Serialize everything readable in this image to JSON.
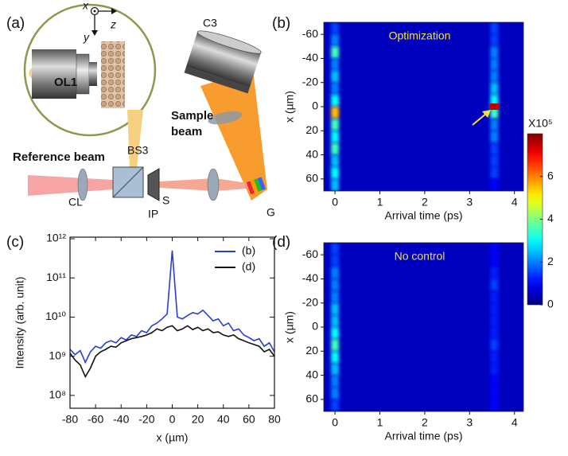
{
  "panel_labels": [
    "(a)",
    "(b)",
    "(c)",
    "(d)"
  ],
  "diagram": {
    "ol1": "OL1",
    "coord_x": "x",
    "coord_y": "y",
    "coord_z": "z",
    "c3": "C3",
    "sample_beam_1": "Sample",
    "sample_beam_2": "beam",
    "bs3": "BS3",
    "reference_beam": "Reference beam",
    "cl": "CL",
    "s": "S",
    "ip": "IP",
    "g": "G"
  },
  "chart_data": [
    {
      "type": "line",
      "log_y": true,
      "xlabel": "x (µm)",
      "ylabel": "Intensity (arb. unit)",
      "x": [
        -80,
        -76,
        -72,
        -68,
        -64,
        -60,
        -56,
        -52,
        -48,
        -44,
        -40,
        -36,
        -32,
        -28,
        -24,
        -20,
        -16,
        -12,
        -8,
        -4,
        0,
        4,
        8,
        12,
        16,
        20,
        24,
        28,
        32,
        36,
        40,
        44,
        48,
        52,
        56,
        60,
        64,
        68,
        72,
        76,
        80
      ],
      "series": [
        {
          "name": "(b)",
          "color": "#2a3ed6",
          "values": [
            1500000000.0,
            1100000000.0,
            1400000000.0,
            700000000.0,
            1300000000.0,
            1800000000.0,
            1600000000.0,
            2200000000.0,
            2500000000.0,
            2200000000.0,
            3000000000.0,
            2600000000.0,
            3500000000.0,
            3200000000.0,
            4500000000.0,
            4000000000.0,
            6000000000.0,
            7000000000.0,
            9000000000.0,
            12000000000.0,
            500000000000.0,
            10000000000.0,
            9000000000.0,
            11000000000.0,
            13000000000.0,
            12000000000.0,
            15000000000.0,
            11000000000.0,
            8000000000.0,
            9000000000.0,
            6000000000.0,
            7000000000.0,
            4500000000.0,
            5000000000.0,
            3500000000.0,
            3000000000.0,
            2500000000.0,
            2800000000.0,
            1800000000.0,
            2200000000.0,
            1300000000.0
          ]
        },
        {
          "name": "(d)",
          "color": "#111111",
          "values": [
            1200000000.0,
            800000000.0,
            600000000.0,
            300000000.0,
            500000000.0,
            1000000000.0,
            1300000000.0,
            1500000000.0,
            1800000000.0,
            1700000000.0,
            2200000000.0,
            2500000000.0,
            2800000000.0,
            3000000000.0,
            3200000000.0,
            3500000000.0,
            4000000000.0,
            5000000000.0,
            4500000000.0,
            5500000000.0,
            6000000000.0,
            4500000000.0,
            5000000000.0,
            6000000000.0,
            4800000000.0,
            5500000000.0,
            4500000000.0,
            5000000000.0,
            4000000000.0,
            4200000000.0,
            3500000000.0,
            3200000000.0,
            3500000000.0,
            2800000000.0,
            2500000000.0,
            2200000000.0,
            2000000000.0,
            1800000000.0,
            1300000000.0,
            1500000000.0,
            1000000000.0
          ]
        }
      ],
      "xlim": [
        -80,
        80
      ],
      "xticks": [
        -80,
        -60,
        -40,
        -20,
        0,
        20,
        40,
        60,
        80
      ],
      "ylim": [
        47000000.0,
        1100000000000.0
      ],
      "yticks": [
        {
          "value": 100000000.0,
          "label": "10⁸"
        },
        {
          "value": 1000000000.0,
          "label": "10⁹"
        },
        {
          "value": 10000000000.0,
          "label": "10¹⁰"
        },
        {
          "value": 100000000000.0,
          "label": "10¹¹"
        },
        {
          "value": 1000000000000.0,
          "label": "10¹²"
        }
      ],
      "legend": "upper right"
    },
    {
      "type": "heatmap",
      "colormap": "jet",
      "annotation": "Optimization",
      "xlabel": "Arrival time (ps)",
      "ylabel": "x (µm)",
      "xlim": [
        -0.25,
        4.2
      ],
      "xticks": [
        0,
        1,
        2,
        3,
        4
      ],
      "ylim": [
        -70,
        70
      ],
      "y_inverted": true,
      "yticks": [
        -60,
        -40,
        -20,
        0,
        20,
        40,
        60
      ],
      "clim": [
        0,
        8
      ],
      "colorbar_ticks": [
        0,
        2,
        4,
        6
      ],
      "colorbar_label": "X10⁵",
      "background": 0.5,
      "y": [
        -65,
        -55,
        -45,
        -35,
        -25,
        -15,
        -5,
        5,
        15,
        25,
        35,
        45,
        55,
        65
      ],
      "streaks": [
        {
          "t": 0,
          "values": [
            1.5,
            2,
            3.5,
            2,
            2.5,
            2,
            3,
            5.5,
            3.5,
            3,
            3.5,
            2.5,
            3,
            2.5
          ]
        },
        {
          "t": 3.55,
          "values": [
            1.5,
            1.5,
            2,
            2,
            2,
            2.5,
            3,
            3.5,
            2,
            2,
            1.5,
            1.5,
            1.5,
            1
          ]
        }
      ],
      "focus": {
        "t": 3.55,
        "y": 0,
        "value": 7.5
      }
    },
    {
      "type": "heatmap",
      "colormap": "jet",
      "annotation": "No control",
      "xlabel": "Arrival time (ps)",
      "ylabel": "x (µm)",
      "xlim": [
        -0.25,
        4.2
      ],
      "xticks": [
        0,
        1,
        2,
        3,
        4
      ],
      "ylim": [
        -70,
        70
      ],
      "y_inverted": true,
      "yticks": [
        -60,
        -40,
        -20,
        0,
        20,
        40,
        60
      ],
      "clim": [
        0,
        8
      ],
      "background": 0.5,
      "y": [
        -65,
        -55,
        -45,
        -35,
        -25,
        -15,
        -5,
        5,
        15,
        25,
        35,
        45,
        55,
        65
      ],
      "streaks": [
        {
          "t": 0,
          "values": [
            1.5,
            1.5,
            2,
            2,
            2,
            2.5,
            2.5,
            3,
            3.5,
            3,
            2.5,
            2,
            2,
            1.5
          ]
        },
        {
          "t": 3.55,
          "values": [
            1,
            1,
            1.2,
            1.5,
            1.2,
            1.2,
            1.2,
            1.2,
            1.5,
            1.2,
            1.2,
            1,
            1,
            1
          ]
        }
      ]
    }
  ]
}
